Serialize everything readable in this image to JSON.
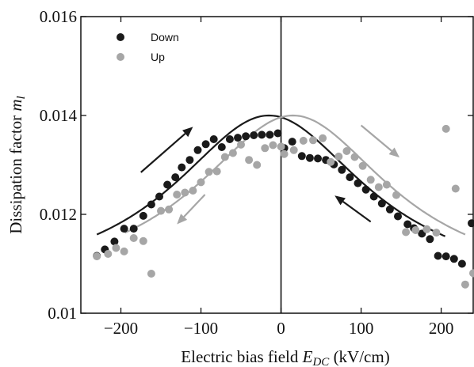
{
  "chart_data": {
    "type": "scatter",
    "xlabel_main": "Electric bias field ",
    "xlabel_sym": "E",
    "xlabel_sub": "DC",
    "xlabel_unit": " (kV/cm)",
    "ylabel_main": "Dissipation factor ",
    "ylabel_sym": "m",
    "ylabel_sub": "l",
    "xlim": [
      -250,
      240
    ],
    "ylim": [
      0.01,
      0.016
    ],
    "x_ticks": [
      {
        "v": -200,
        "label": "−200"
      },
      {
        "v": -100,
        "label": "−100"
      },
      {
        "v": 0,
        "label": "0"
      },
      {
        "v": 100,
        "label": "100"
      },
      {
        "v": 200,
        "label": "200"
      }
    ],
    "y_ticks": [
      {
        "v": 0.01,
        "label": "0.01"
      },
      {
        "v": 0.012,
        "label": "0.012"
      },
      {
        "v": 0.014,
        "label": "0.014"
      },
      {
        "v": 0.016,
        "label": "0.016"
      }
    ],
    "legend_position": "top-left",
    "series": [
      {
        "name": "Down",
        "color": "#1a1a1a",
        "points": [
          [
            -230,
            0.01116
          ],
          [
            -220,
            0.01129
          ],
          [
            -208,
            0.01145
          ],
          [
            -196,
            0.01171
          ],
          [
            -184,
            0.01171
          ],
          [
            -172,
            0.01197
          ],
          [
            -162,
            0.0122
          ],
          [
            -152,
            0.01236
          ],
          [
            -142,
            0.0126
          ],
          [
            -132,
            0.01275
          ],
          [
            -124,
            0.01295
          ],
          [
            -114,
            0.0131
          ],
          [
            -104,
            0.0133
          ],
          [
            -94,
            0.01342
          ],
          [
            -84,
            0.01352
          ],
          [
            -74,
            0.01336
          ],
          [
            -64,
            0.01352
          ],
          [
            -54,
            0.01355
          ],
          [
            -44,
            0.01358
          ],
          [
            -34,
            0.0136
          ],
          [
            -24,
            0.01361
          ],
          [
            -14,
            0.01361
          ],
          [
            -4,
            0.01364
          ],
          [
            4,
            0.01334
          ],
          [
            14,
            0.01347
          ],
          [
            26,
            0.01318
          ],
          [
            36,
            0.01314
          ],
          [
            46,
            0.01313
          ],
          [
            56,
            0.0131
          ],
          [
            66,
            0.01301
          ],
          [
            76,
            0.0129
          ],
          [
            86,
            0.01275
          ],
          [
            96,
            0.01263
          ],
          [
            106,
            0.0125
          ],
          [
            116,
            0.01236
          ],
          [
            126,
            0.01222
          ],
          [
            136,
            0.0121
          ],
          [
            146,
            0.01196
          ],
          [
            158,
            0.0118
          ],
          [
            166,
            0.01172
          ],
          [
            176,
            0.01161
          ],
          [
            186,
            0.0115
          ],
          [
            196,
            0.01116
          ],
          [
            206,
            0.01115
          ],
          [
            216,
            0.0111
          ],
          [
            226,
            0.011
          ],
          [
            238,
            0.01182
          ]
        ]
      },
      {
        "name": "Up",
        "color": "#a6a6a6",
        "points": [
          [
            -230,
            0.01115
          ],
          [
            -216,
            0.0112
          ],
          [
            -206,
            0.01132
          ],
          [
            -196,
            0.01125
          ],
          [
            -184,
            0.01152
          ],
          [
            -172,
            0.01146
          ],
          [
            -162,
            0.0108
          ],
          [
            -150,
            0.01207
          ],
          [
            -140,
            0.0121
          ],
          [
            -130,
            0.0124
          ],
          [
            -120,
            0.01244
          ],
          [
            -110,
            0.01248
          ],
          [
            -100,
            0.01265
          ],
          [
            -90,
            0.01286
          ],
          [
            -80,
            0.01287
          ],
          [
            -70,
            0.01316
          ],
          [
            -60,
            0.01324
          ],
          [
            -50,
            0.01341
          ],
          [
            -40,
            0.0131
          ],
          [
            -30,
            0.013
          ],
          [
            -20,
            0.01334
          ],
          [
            -10,
            0.0134
          ],
          [
            0,
            0.01337
          ],
          [
            4,
            0.01322
          ],
          [
            16,
            0.0133
          ],
          [
            28,
            0.01349
          ],
          [
            40,
            0.0135
          ],
          [
            52,
            0.01354
          ],
          [
            62,
            0.01306
          ],
          [
            72,
            0.01317
          ],
          [
            82,
            0.01328
          ],
          [
            92,
            0.01316
          ],
          [
            102,
            0.01298
          ],
          [
            112,
            0.0127
          ],
          [
            122,
            0.01255
          ],
          [
            132,
            0.0126
          ],
          [
            144,
            0.01239
          ],
          [
            156,
            0.01164
          ],
          [
            168,
            0.01168
          ],
          [
            182,
            0.0117
          ],
          [
            194,
            0.01163
          ],
          [
            206,
            0.01373
          ],
          [
            218,
            0.01252
          ],
          [
            230,
            0.01058
          ],
          [
            240,
            0.01081
          ]
        ]
      }
    ],
    "fit_curves": [
      {
        "series": "Down",
        "color": "#1a1a1a",
        "center": -15,
        "width": 148,
        "peak": 0.014,
        "base": 0.01045,
        "x_range": [
          -230,
          205
        ]
      },
      {
        "series": "Up",
        "color": "#a6a6a6",
        "center": 15,
        "width": 148,
        "peak": 0.014,
        "base": 0.01045,
        "x_range": [
          -195,
          230
        ]
      }
    ],
    "arrows": [
      {
        "color": "#1a1a1a",
        "from": [
          -175,
          0.01285
        ],
        "to": [
          -110,
          0.01377
        ]
      },
      {
        "color": "#a6a6a6",
        "from": [
          -95,
          0.0124
        ],
        "to": [
          -130,
          0.0118
        ]
      },
      {
        "color": "#a6a6a6",
        "from": [
          100,
          0.0138
        ],
        "to": [
          148,
          0.01315
        ]
      },
      {
        "color": "#1a1a1a",
        "from": [
          112,
          0.01185
        ],
        "to": [
          67,
          0.01238
        ]
      }
    ]
  }
}
